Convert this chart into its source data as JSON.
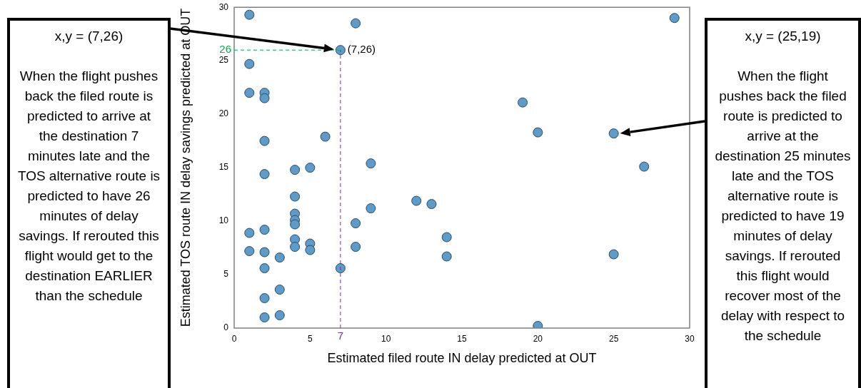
{
  "chart_data": {
    "type": "scatter",
    "xlabel": "Estimated filed route IN delay predicted at OUT",
    "ylabel": "Estimated TOS route IN delay savings predicted at OUT",
    "series": [
      {
        "color": "#5e9bc8",
        "x": [
          1,
          8,
          29,
          7,
          1,
          1,
          2,
          2,
          19,
          20,
          25,
          2,
          6,
          27,
          9,
          4,
          5,
          2,
          4,
          12,
          13,
          9,
          4,
          4,
          4,
          8,
          1,
          2,
          14,
          4,
          5,
          5,
          4,
          8,
          1,
          2,
          25,
          14,
          3,
          2,
          7,
          3,
          2,
          3,
          2,
          20
        ],
        "values": [
          29.3,
          28.5,
          29.0,
          26,
          24.7,
          22.0,
          22.0,
          21.5,
          21.1,
          18.3,
          18.2,
          17.5,
          17.9,
          15.1,
          15.4,
          14.8,
          15.0,
          14.4,
          12.3,
          11.9,
          11.6,
          11.2,
          10.7,
          10.1,
          9.7,
          9.8,
          8.9,
          9.2,
          8.5,
          8.3,
          7.9,
          7.3,
          7.6,
          7.6,
          7.2,
          7.1,
          6.9,
          6.7,
          6.6,
          5.6,
          5.6,
          3.6,
          2.8,
          1.2,
          1.0,
          0.2
        ]
      }
    ],
    "xlim": [
      0,
      30
    ],
    "xticks": [
      0,
      5,
      10,
      15,
      20,
      25,
      30
    ],
    "ylim": [
      0,
      30
    ],
    "yticks": [
      0,
      5,
      10,
      15,
      20,
      25,
      30
    ],
    "marker": "circle",
    "grid": false,
    "legend": false,
    "ref_lines": [
      {
        "axis": "x",
        "value": 7,
        "label": "7",
        "color": "#7030a0",
        "line_style": "dashed"
      },
      {
        "axis": "y",
        "value": 26,
        "label": "26",
        "color": "#00b050",
        "line_style": "dashed"
      }
    ],
    "annotations": [
      {
        "text": "(7,26)",
        "x": 7,
        "y": 26
      },
      "x,y = (7,26)",
      "When the flight pushes back the filed route is predicted to arrive at the destination 7 minutes late and the TOS alternative route is predicted to have 26 minutes of delay savings. If rerouted this flight would get to the destination EARLIER than the schedule",
      "x,y = (25,19)",
      "When the flight pushes back the filed route is predicted to arrive at the destination 25 minutes late and the TOS alternative route is predicted to have 19 minutes of delay savings. If rerouted this flight would recover most of the delay with respect to the schedule"
    ]
  }
}
